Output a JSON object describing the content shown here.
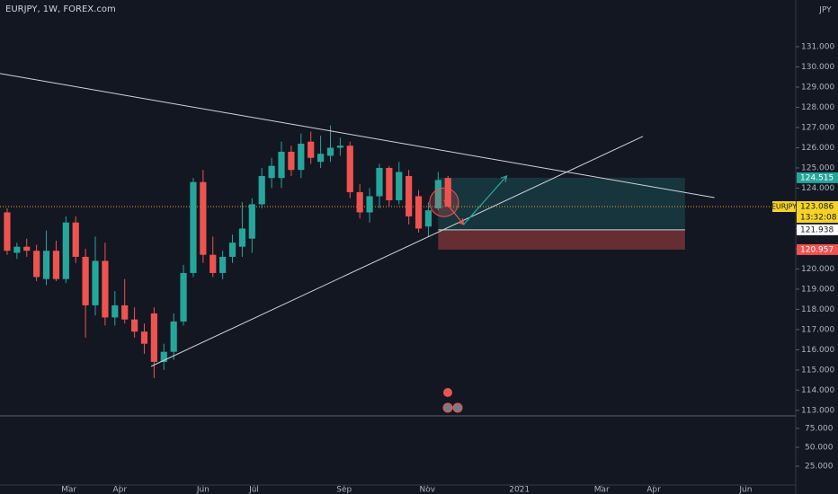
{
  "chart_data": {
    "type": "candlestick",
    "title": "EURJPY, 1W, FOREX.com",
    "currency": "JPY",
    "up_color": "#26a69a",
    "down_color": "#ef5350",
    "x": [
      0,
      1,
      2,
      3,
      4,
      5,
      6,
      7,
      8,
      9,
      10,
      11,
      12,
      13,
      14,
      15,
      16,
      17,
      18,
      19,
      20,
      21,
      22,
      23,
      24,
      25,
      26,
      27,
      28,
      29,
      30,
      31,
      32,
      33,
      34,
      35,
      36,
      37,
      38,
      39,
      40,
      41,
      42,
      43,
      44,
      45
    ],
    "open": [
      122.8,
      120.8,
      121.1,
      120.9,
      119.5,
      120.9,
      119.5,
      122.3,
      120.6,
      118.2,
      120.4,
      117.6,
      118.2,
      117.5,
      116.9,
      117.8,
      115.4,
      115.9,
      117.4,
      119.8,
      124.3,
      120.7,
      119.8,
      120.6,
      121.1,
      121.5,
      123.2,
      124.5,
      124.5,
      125.8,
      124.9,
      126.3,
      125.3,
      125.6,
      126.0,
      126.1,
      123.8,
      122.8,
      123.6,
      125.0,
      123.4,
      124.6,
      123.6,
      122.1,
      123.0,
      124.5
    ],
    "high": [
      123.0,
      121.3,
      121.5,
      121.2,
      121.9,
      121.4,
      122.6,
      122.6,
      121.0,
      121.6,
      121.3,
      118.9,
      119.5,
      118.1,
      117.3,
      118.1,
      116.3,
      117.8,
      120.2,
      124.5,
      124.9,
      121.6,
      120.9,
      121.7,
      123.3,
      123.5,
      125.0,
      125.5,
      126.3,
      126.1,
      126.7,
      126.8,
      126.6,
      127.1,
      126.5,
      126.3,
      124.2,
      124.0,
      125.2,
      125.1,
      125.3,
      124.9,
      123.9,
      123.3,
      124.8,
      124.6
    ],
    "low": [
      120.7,
      120.5,
      120.6,
      119.4,
      119.2,
      119.4,
      119.3,
      120.3,
      116.6,
      117.7,
      117.2,
      117.2,
      117.3,
      116.6,
      115.8,
      114.6,
      115.0,
      115.5,
      117.2,
      119.6,
      120.3,
      119.6,
      119.5,
      120.3,
      120.6,
      120.8,
      123.0,
      124.0,
      124.0,
      124.6,
      124.5,
      125.2,
      125.0,
      125.3,
      125.6,
      123.5,
      122.5,
      122.3,
      123.0,
      123.1,
      123.2,
      122.2,
      121.8,
      121.6,
      122.9,
      123.05
    ],
    "close": [
      120.9,
      121.1,
      120.9,
      119.6,
      120.9,
      119.5,
      122.3,
      120.6,
      118.2,
      120.4,
      117.6,
      118.2,
      117.5,
      116.9,
      116.3,
      115.4,
      115.9,
      117.4,
      119.8,
      124.3,
      120.7,
      119.8,
      120.6,
      121.3,
      122.0,
      123.2,
      124.6,
      125.1,
      125.8,
      124.9,
      126.2,
      125.5,
      125.7,
      126.0,
      126.1,
      123.8,
      122.8,
      123.6,
      125.0,
      123.4,
      124.8,
      122.6,
      122.0,
      122.9,
      124.4,
      123.086
    ],
    "symbol_label": "EURJPY",
    "countdown": "13:32:08",
    "xlim": [
      -0.73,
      80.5
    ],
    "xticks": [
      {
        "value": 6.3,
        "label": "Mar"
      },
      {
        "value": 11.5,
        "label": "Apr"
      },
      {
        "value": 20.0,
        "label": "Jun"
      },
      {
        "value": 25.2,
        "label": "Jul"
      },
      {
        "value": 34.4,
        "label": "Sep"
      },
      {
        "value": 42.9,
        "label": "Nov"
      },
      {
        "value": 52.3,
        "label": "2021"
      },
      {
        "value": 60.7,
        "label": "Mar"
      },
      {
        "value": 66.0,
        "label": "Apr"
      },
      {
        "value": 75.4,
        "label": "Jun"
      }
    ],
    "ylim": [
      112.73,
      133.31
    ],
    "yticks": [
      {
        "value": 113,
        "label": "113.000"
      },
      {
        "value": 114,
        "label": "114.000"
      },
      {
        "value": 115,
        "label": "115.000"
      },
      {
        "value": 116,
        "label": "116.000"
      },
      {
        "value": 117,
        "label": "117.000"
      },
      {
        "value": 118,
        "label": "118.000"
      },
      {
        "value": 119,
        "label": "119.000"
      },
      {
        "value": 120,
        "label": "120.000"
      },
      {
        "value": 121,
        "label": "121.000"
      },
      {
        "value": 122,
        "label": "122.000"
      },
      {
        "value": 123,
        "label": "123.000"
      },
      {
        "value": 124,
        "label": "124.000"
      },
      {
        "value": 125,
        "label": "125.000"
      },
      {
        "value": 126,
        "label": "126.000"
      },
      {
        "value": 127,
        "label": "127.000"
      },
      {
        "value": 128,
        "label": "128.000"
      },
      {
        "value": 129,
        "label": "129.000"
      },
      {
        "value": 130,
        "label": "130.000"
      },
      {
        "value": 131,
        "label": "131.000"
      }
    ],
    "y2lim": [
      0,
      91.7
    ],
    "y2ticks": [
      {
        "value": 25,
        "label": "25.000"
      },
      {
        "value": 50,
        "label": "50.000"
      },
      {
        "value": 75,
        "label": "75.000"
      }
    ],
    "trendlines": [
      {
        "x": [
          -0.73,
          72.2
        ],
        "y": [
          129.67,
          123.53
        ]
      },
      {
        "x": [
          14.7,
          64.9
        ],
        "y": [
          115.18,
          126.56
        ]
      }
    ],
    "arrows": [
      {
        "x": [
          44.6,
          46.6
        ],
        "y": [
          123.4,
          122.2
        ],
        "color": "#ef5350"
      },
      {
        "x": [
          46.6,
          51.0
        ],
        "y": [
          122.2,
          124.6
        ],
        "color": "#26a69a"
      }
    ],
    "highlight": {
      "x": 44.6,
      "y": 123.3
    },
    "position": {
      "x": [
        44.0,
        69.2
      ],
      "entry": 121.938,
      "target": 124.515,
      "stop": 120.957
    }
  }
}
